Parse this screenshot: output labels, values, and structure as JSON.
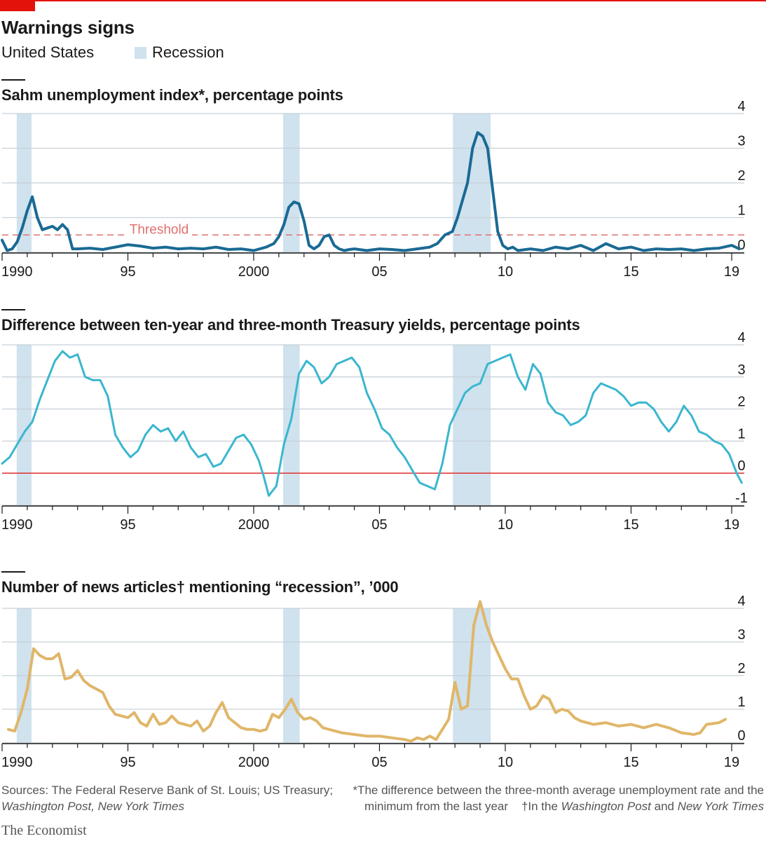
{
  "header": {
    "title": "Warnings signs",
    "subtitle": "United States",
    "legend_label": "Recession"
  },
  "colors": {
    "brand_red": "#e3120b",
    "recession": "#cfe2ee",
    "sahm": "#1a6a94",
    "yield": "#3ab6cf",
    "news": "#e0b669",
    "threshold": "#e07070",
    "zero_line": "#e03c3c",
    "grid": "#c8d0d8"
  },
  "chart_data": [
    {
      "type": "line",
      "title": "Sahm unemployment index*, percentage points",
      "title_main": "Sahm unemployment index*, percentage points",
      "threshold_label": "Threshold",
      "threshold": 0.5,
      "ylim": [
        0,
        4
      ],
      "y_ticks": [
        0,
        1,
        2,
        3,
        4
      ],
      "y_tick_labels": [
        "0",
        "1",
        "2",
        "3",
        "4"
      ],
      "xlim": [
        1990,
        2019.5
      ],
      "x_ticks": [
        1990,
        1995,
        2000,
        2005,
        2010,
        2015,
        2019
      ],
      "x_tick_labels": [
        "1990",
        "95",
        "2000",
        "05",
        "10",
        "15",
        "19"
      ],
      "recessions": [
        [
          1990.58,
          1991.17
        ],
        [
          2001.17,
          2001.83
        ],
        [
          2007.92,
          2009.42
        ]
      ],
      "series": [
        {
          "name": "Sahm index",
          "x": [
            1990.0,
            1990.2,
            1990.4,
            1990.6,
            1990.8,
            1991.0,
            1991.2,
            1991.4,
            1991.6,
            1991.8,
            1992.0,
            1992.2,
            1992.4,
            1992.6,
            1992.8,
            1993.0,
            1993.5,
            1994.0,
            1994.5,
            1995.0,
            1995.5,
            1996.0,
            1996.5,
            1997.0,
            1997.5,
            1998.0,
            1998.5,
            1999.0,
            1999.5,
            2000.0,
            2000.5,
            2000.8,
            2001.0,
            2001.2,
            2001.4,
            2001.6,
            2001.8,
            2002.0,
            2002.2,
            2002.4,
            2002.6,
            2002.8,
            2003.0,
            2003.2,
            2003.4,
            2003.6,
            2003.8,
            2004.0,
            2004.5,
            2005.0,
            2005.5,
            2006.0,
            2006.5,
            2007.0,
            2007.3,
            2007.6,
            2007.9,
            2008.1,
            2008.3,
            2008.5,
            2008.7,
            2008.9,
            2009.1,
            2009.3,
            2009.5,
            2009.7,
            2009.9,
            2010.1,
            2010.3,
            2010.5,
            2011.0,
            2011.5,
            2012.0,
            2012.5,
            2013.0,
            2013.5,
            2014.0,
            2014.5,
            2015.0,
            2015.5,
            2016.0,
            2016.5,
            2017.0,
            2017.5,
            2018.0,
            2018.5,
            2019.0,
            2019.3
          ],
          "y": [
            0.35,
            0.05,
            0.1,
            0.3,
            0.7,
            1.2,
            1.6,
            1.0,
            0.65,
            0.7,
            0.75,
            0.65,
            0.8,
            0.65,
            0.1,
            0.1,
            0.12,
            0.08,
            0.15,
            0.22,
            0.18,
            0.12,
            0.15,
            0.1,
            0.12,
            0.1,
            0.15,
            0.08,
            0.1,
            0.05,
            0.15,
            0.25,
            0.45,
            0.8,
            1.3,
            1.45,
            1.4,
            0.9,
            0.2,
            0.1,
            0.2,
            0.45,
            0.5,
            0.2,
            0.1,
            0.05,
            0.08,
            0.1,
            0.05,
            0.1,
            0.08,
            0.05,
            0.1,
            0.15,
            0.25,
            0.5,
            0.6,
            1.0,
            1.5,
            2.0,
            3.0,
            3.45,
            3.35,
            3.0,
            1.8,
            0.6,
            0.2,
            0.1,
            0.15,
            0.05,
            0.1,
            0.05,
            0.15,
            0.1,
            0.2,
            0.05,
            0.25,
            0.1,
            0.15,
            0.05,
            0.1,
            0.08,
            0.1,
            0.05,
            0.1,
            0.12,
            0.2,
            0.1
          ]
        }
      ]
    },
    {
      "type": "line",
      "title": "Difference between ten-year and three-month Treasury yields, percentage points",
      "ylim": [
        -1,
        4
      ],
      "y_ticks": [
        -1,
        0,
        1,
        2,
        3,
        4
      ],
      "y_tick_labels": [
        "-1",
        "0",
        "1",
        "2",
        "3",
        "4"
      ],
      "xlim": [
        1990,
        2019.5
      ],
      "x_ticks": [
        1990,
        1995,
        2000,
        2005,
        2010,
        2015,
        2019
      ],
      "x_tick_labels": [
        "1990",
        "95",
        "2000",
        "05",
        "10",
        "15",
        "19"
      ],
      "recessions": [
        [
          1990.58,
          1991.17
        ],
        [
          2001.17,
          2001.83
        ],
        [
          2007.92,
          2009.42
        ]
      ],
      "series": [
        {
          "name": "10y-3m spread",
          "x": [
            1990.0,
            1990.3,
            1990.6,
            1990.9,
            1991.2,
            1991.5,
            1991.8,
            1992.1,
            1992.4,
            1992.7,
            1993.0,
            1993.3,
            1993.6,
            1993.9,
            1994.2,
            1994.5,
            1994.8,
            1995.1,
            1995.4,
            1995.7,
            1996.0,
            1996.3,
            1996.6,
            1996.9,
            1997.2,
            1997.5,
            1997.8,
            1998.1,
            1998.4,
            1998.7,
            1999.0,
            1999.3,
            1999.6,
            1999.9,
            2000.2,
            2000.4,
            2000.6,
            2000.9,
            2001.2,
            2001.5,
            2001.8,
            2002.1,
            2002.4,
            2002.7,
            2003.0,
            2003.3,
            2003.6,
            2003.9,
            2004.2,
            2004.5,
            2004.8,
            2005.1,
            2005.4,
            2005.7,
            2006.0,
            2006.3,
            2006.6,
            2006.9,
            2007.2,
            2007.5,
            2007.8,
            2008.1,
            2008.4,
            2008.7,
            2009.0,
            2009.3,
            2009.6,
            2009.9,
            2010.2,
            2010.5,
            2010.8,
            2011.1,
            2011.4,
            2011.7,
            2012.0,
            2012.3,
            2012.6,
            2012.9,
            2013.2,
            2013.5,
            2013.8,
            2014.1,
            2014.4,
            2014.7,
            2015.0,
            2015.3,
            2015.6,
            2015.9,
            2016.2,
            2016.5,
            2016.8,
            2017.1,
            2017.4,
            2017.7,
            2018.0,
            2018.3,
            2018.6,
            2018.9,
            2019.2,
            2019.4
          ],
          "y": [
            0.3,
            0.5,
            0.9,
            1.3,
            1.6,
            2.3,
            2.9,
            3.5,
            3.8,
            3.6,
            3.7,
            3.0,
            2.9,
            2.9,
            2.4,
            1.2,
            0.8,
            0.5,
            0.7,
            1.2,
            1.5,
            1.3,
            1.4,
            1.0,
            1.3,
            0.8,
            0.5,
            0.6,
            0.2,
            0.3,
            0.7,
            1.1,
            1.2,
            0.9,
            0.4,
            -0.1,
            -0.7,
            -0.4,
            0.9,
            1.7,
            3.1,
            3.5,
            3.3,
            2.8,
            3.0,
            3.4,
            3.5,
            3.6,
            3.3,
            2.5,
            2.0,
            1.4,
            1.2,
            0.8,
            0.5,
            0.1,
            -0.3,
            -0.4,
            -0.5,
            0.3,
            1.5,
            2.0,
            2.5,
            2.7,
            2.8,
            3.4,
            3.5,
            3.6,
            3.7,
            3.0,
            2.6,
            3.4,
            3.1,
            2.2,
            1.9,
            1.8,
            1.5,
            1.6,
            1.8,
            2.5,
            2.8,
            2.7,
            2.6,
            2.4,
            2.1,
            2.2,
            2.2,
            2.0,
            1.6,
            1.3,
            1.6,
            2.1,
            1.8,
            1.3,
            1.2,
            1.0,
            0.9,
            0.6,
            0.0,
            -0.3
          ]
        }
      ]
    },
    {
      "type": "line",
      "title": "Number of news articles† mentioning “recession”, ’000",
      "ylim": [
        0,
        4
      ],
      "y_ticks": [
        0,
        1,
        2,
        3,
        4
      ],
      "y_tick_labels": [
        "0",
        "1",
        "2",
        "3",
        "4"
      ],
      "xlim": [
        1990,
        2019.5
      ],
      "x_ticks": [
        1990,
        1995,
        2000,
        2005,
        2010,
        2015,
        2019
      ],
      "x_tick_labels": [
        "1990",
        "95",
        "2000",
        "05",
        "10",
        "15",
        "19"
      ],
      "recessions": [
        [
          1990.58,
          1991.17
        ],
        [
          2001.17,
          2001.83
        ],
        [
          2007.92,
          2009.42
        ]
      ],
      "series": [
        {
          "name": "News articles",
          "x": [
            1990.25,
            1990.5,
            1990.75,
            1991.0,
            1991.25,
            1991.5,
            1991.75,
            1992.0,
            1992.25,
            1992.5,
            1992.75,
            1993.0,
            1993.25,
            1993.5,
            1993.75,
            1994.0,
            1994.25,
            1994.5,
            1994.75,
            1995.0,
            1995.25,
            1995.5,
            1995.75,
            1996.0,
            1996.25,
            1996.5,
            1996.75,
            1997.0,
            1997.25,
            1997.5,
            1997.75,
            1998.0,
            1998.25,
            1998.5,
            1998.75,
            1999.0,
            1999.25,
            1999.5,
            1999.75,
            2000.0,
            2000.25,
            2000.5,
            2000.75,
            2001.0,
            2001.25,
            2001.5,
            2001.75,
            2002.0,
            2002.25,
            2002.5,
            2002.75,
            2003.0,
            2003.5,
            2004.0,
            2004.5,
            2005.0,
            2005.5,
            2006.0,
            2006.25,
            2006.5,
            2006.75,
            2007.0,
            2007.25,
            2007.5,
            2007.75,
            2008.0,
            2008.25,
            2008.5,
            2008.75,
            2009.0,
            2009.25,
            2009.5,
            2009.75,
            2010.0,
            2010.25,
            2010.5,
            2010.75,
            2011.0,
            2011.25,
            2011.5,
            2011.75,
            2012.0,
            2012.25,
            2012.5,
            2012.75,
            2013.0,
            2013.5,
            2014.0,
            2014.5,
            2015.0,
            2015.5,
            2016.0,
            2016.5,
            2017.0,
            2017.5,
            2017.75,
            2018.0,
            2018.5,
            2018.75
          ],
          "y": [
            0.4,
            0.35,
            0.9,
            1.6,
            2.8,
            2.6,
            2.5,
            2.5,
            2.65,
            1.9,
            1.95,
            2.15,
            1.85,
            1.7,
            1.6,
            1.5,
            1.1,
            0.85,
            0.8,
            0.75,
            0.9,
            0.6,
            0.5,
            0.85,
            0.55,
            0.6,
            0.8,
            0.6,
            0.55,
            0.5,
            0.65,
            0.35,
            0.5,
            0.9,
            1.2,
            0.75,
            0.6,
            0.45,
            0.4,
            0.4,
            0.35,
            0.4,
            0.85,
            0.75,
            1.0,
            1.3,
            0.9,
            0.7,
            0.75,
            0.65,
            0.45,
            0.4,
            0.3,
            0.25,
            0.2,
            0.2,
            0.15,
            0.1,
            0.05,
            0.15,
            0.1,
            0.2,
            0.1,
            0.4,
            0.7,
            1.8,
            1.0,
            1.1,
            3.5,
            4.2,
            3.5,
            3.0,
            2.6,
            2.2,
            1.9,
            1.9,
            1.4,
            1.0,
            1.1,
            1.4,
            1.3,
            0.9,
            1.0,
            0.95,
            0.75,
            0.65,
            0.55,
            0.6,
            0.5,
            0.55,
            0.45,
            0.55,
            0.45,
            0.3,
            0.25,
            0.3,
            0.55,
            0.6,
            0.7
          ]
        }
      ]
    }
  ],
  "footer": {
    "sources_line1": "Sources: The Federal Reserve Bank of St. Louis; US Treasury;",
    "sources_line2": "Washington Post, New York Times",
    "note_line1": "*The difference between the three-month average unemployment rate and the",
    "note_line2a": "minimum from the last year",
    "note_line2b": "†In the ",
    "note_wp": "Washington Post",
    "note_and": " and ",
    "note_nyt": "New York Times",
    "brand": "The Economist"
  }
}
